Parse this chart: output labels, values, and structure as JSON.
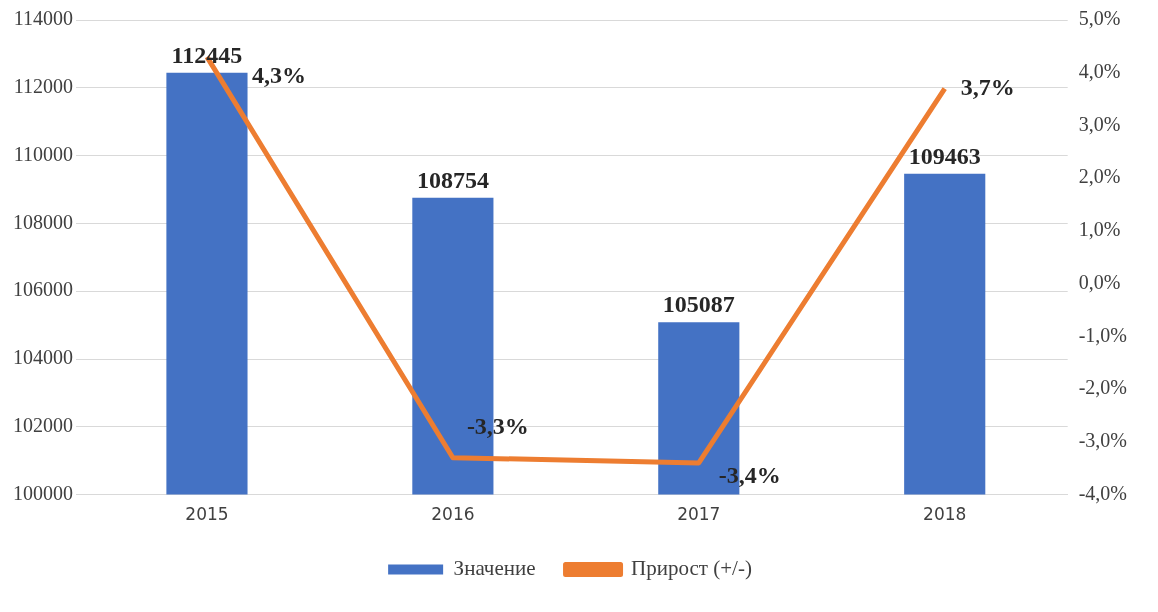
{
  "chart_data": {
    "type": "bar",
    "categories": [
      "2015",
      "2016",
      "2017",
      "2018"
    ],
    "series": [
      {
        "name": "Значение",
        "color": "#4472c4",
        "values": [
          112445,
          108754,
          105087,
          109463
        ],
        "value_labels": [
          "112445",
          "108754",
          "105087",
          "109463"
        ]
      },
      {
        "name": "Прирост (+/-)",
        "type": "line",
        "axis": "y2",
        "color": "#ed7d31",
        "values": [
          4.3,
          -3.3,
          -3.4,
          3.7
        ],
        "value_labels": [
          "4,3%",
          "-3,3%",
          "-3,4%",
          "3,7%"
        ]
      }
    ],
    "ylim": [
      100000,
      114000
    ],
    "yticks": [
      100000,
      102000,
      104000,
      106000,
      108000,
      110000,
      112000,
      114000
    ],
    "y2lim": [
      -4,
      5
    ],
    "y2ticks": [
      {
        "value": -4,
        "label": "-4,0%"
      },
      {
        "value": -3,
        "label": "-3,0%"
      },
      {
        "value": -2,
        "label": "-2,0%"
      },
      {
        "value": -1,
        "label": "-1,0%"
      },
      {
        "value": 0,
        "label": "0,0%"
      },
      {
        "value": 1,
        "label": "1,0%"
      },
      {
        "value": 2,
        "label": "2,0%"
      },
      {
        "value": 3,
        "label": "3,0%"
      },
      {
        "value": 4,
        "label": "4,0%"
      },
      {
        "value": 5,
        "label": "5,0%"
      }
    ],
    "grid": "y",
    "legend": "bottom",
    "marker": "none",
    "line_style": "solid"
  }
}
